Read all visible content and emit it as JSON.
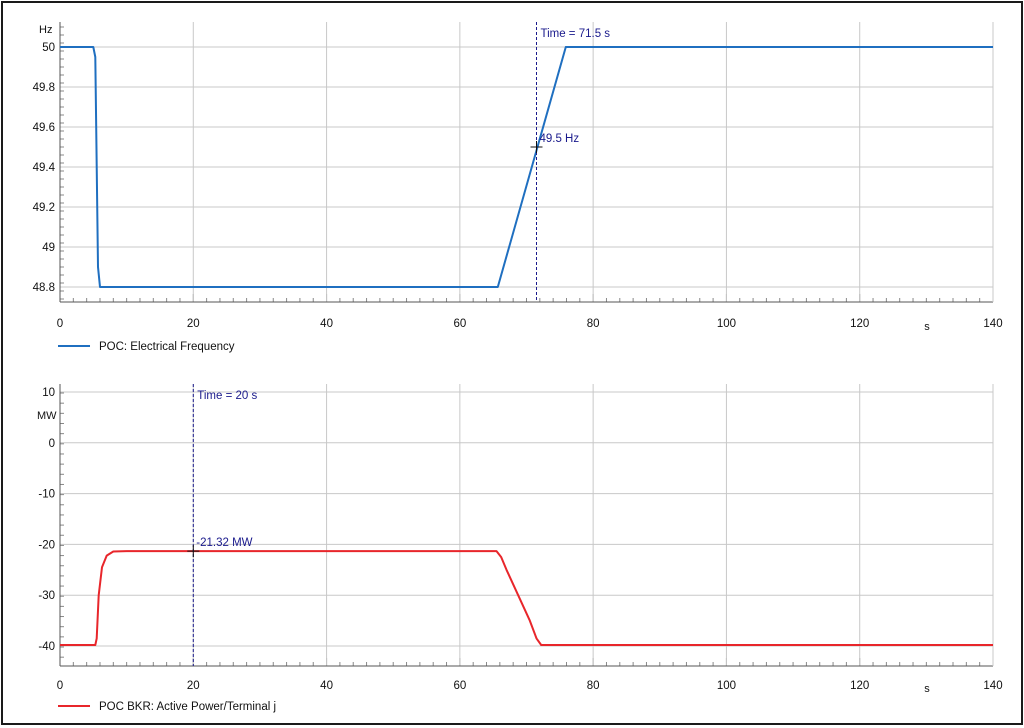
{
  "chart_data": [
    {
      "type": "line",
      "ylabel": "Hz",
      "xlabel": "s",
      "xlim": [
        0,
        140
      ],
      "ylim": [
        48.7,
        50.1
      ],
      "x_ticks": [
        0,
        20,
        40,
        60,
        80,
        100,
        120,
        140
      ],
      "y_ticks": [
        48.8,
        49,
        49.2,
        49.4,
        49.6,
        49.8,
        50
      ],
      "x_tick_labels": [
        "0",
        "20",
        "40",
        "60",
        "80",
        "100",
        "120",
        "140"
      ],
      "y_tick_labels": [
        "48.8",
        "49",
        "49.2",
        "49.4",
        "49.6",
        "49.8",
        "50"
      ],
      "grid": true,
      "legend": "bottom-left",
      "series": [
        {
          "name": "POC: Electrical Frequency",
          "color": "#1f6fc0",
          "x": [
            0,
            5,
            5.3,
            5.7,
            6,
            10,
            65.7,
            75.9,
            140
          ],
          "y": [
            50,
            50,
            49.95,
            48.9,
            48.8,
            48.8,
            48.8,
            50,
            50
          ]
        }
      ],
      "cursor": {
        "x": 71.5,
        "time_label": "Time = 71.5 s",
        "value_label": "49.5 Hz",
        "value": 49.5
      }
    },
    {
      "type": "line",
      "ylabel": "MW",
      "xlabel": "s",
      "xlim": [
        0,
        140
      ],
      "ylim": [
        -42.2,
        11
      ],
      "x_ticks": [
        0,
        20,
        40,
        60,
        80,
        100,
        120,
        140
      ],
      "y_ticks": [
        -40,
        -30,
        -20,
        -10,
        0,
        10
      ],
      "x_tick_labels": [
        "0",
        "20",
        "40",
        "60",
        "80",
        "100",
        "120",
        "140"
      ],
      "y_tick_labels": [
        "-40",
        "-30",
        "-20",
        "-10",
        "0",
        "10"
      ],
      "grid": true,
      "legend": "bottom-left",
      "series": [
        {
          "name": "POC BKR: Active Power/Terminal j",
          "color": "#e8262b",
          "x": [
            0,
            5.3,
            5.5,
            5.8,
            6.3,
            7,
            8,
            10,
            65.5,
            66.2,
            67,
            70.5,
            71.5,
            72.2,
            140
          ],
          "y": [
            -39.8,
            -39.8,
            -38.5,
            -30,
            -24.5,
            -22.2,
            -21.4,
            -21.32,
            -21.32,
            -22.5,
            -25,
            -35,
            -38.5,
            -39.8,
            -39.8
          ]
        }
      ],
      "cursor": {
        "x": 20,
        "time_label": "Time = 20 s",
        "value_label": "-21.32 MW",
        "value": -21.32
      }
    }
  ]
}
